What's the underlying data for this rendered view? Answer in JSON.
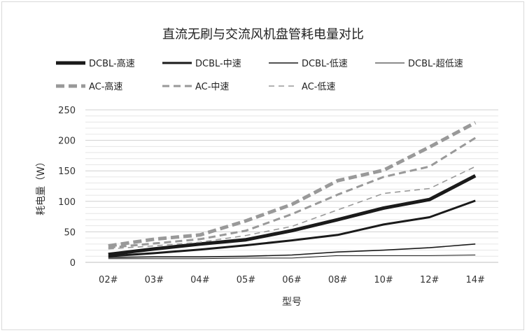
{
  "chart_data": {
    "type": "line",
    "title": "直流无刷与交流风机盘管耗电量对比",
    "xlabel": "型号",
    "ylabel": "耗电量（W）",
    "categories": [
      "02#",
      "03#",
      "04#",
      "05#",
      "06#",
      "08#",
      "10#",
      "12#",
      "14#"
    ],
    "ylim": [
      0,
      250
    ],
    "yticks": [
      0,
      50,
      100,
      150,
      200,
      250
    ],
    "grid": true,
    "legend_position": "top",
    "series": [
      {
        "name": "DCBL-高速",
        "values": [
          13,
          22,
          30,
          37,
          52,
          70,
          89,
          103,
          142
        ],
        "color": "#1a1a1a",
        "dash": "solid",
        "weight": "heavy"
      },
      {
        "name": "DCBL-中速",
        "values": [
          10,
          15,
          21,
          28,
          36,
          45,
          62,
          74,
          101
        ],
        "color": "#1a1a1a",
        "dash": "solid",
        "weight": "medium"
      },
      {
        "name": "DCBL-低速",
        "values": [
          8,
          9,
          9,
          10,
          12,
          17,
          20,
          24,
          30
        ],
        "color": "#1a1a1a",
        "dash": "solid",
        "weight": "light"
      },
      {
        "name": "DCBL-超低速",
        "values": [
          6,
          6,
          6,
          7,
          7,
          11,
          11,
          11,
          12
        ],
        "color": "#1a1a1a",
        "dash": "solid",
        "weight": "hairline"
      },
      {
        "name": "AC-高速",
        "values": [
          27,
          38,
          45,
          68,
          95,
          134,
          151,
          189,
          229
        ],
        "color": "#999999",
        "dash": "dashed",
        "weight": "heavy"
      },
      {
        "name": "AC-中速",
        "values": [
          24,
          31,
          38,
          52,
          79,
          111,
          140,
          157,
          204
        ],
        "color": "#999999",
        "dash": "dashed",
        "weight": "medium"
      },
      {
        "name": "AC-低速",
        "values": [
          22,
          27,
          33,
          44,
          59,
          86,
          113,
          121,
          157
        ],
        "color": "#999999",
        "dash": "dashed",
        "weight": "light"
      }
    ]
  }
}
